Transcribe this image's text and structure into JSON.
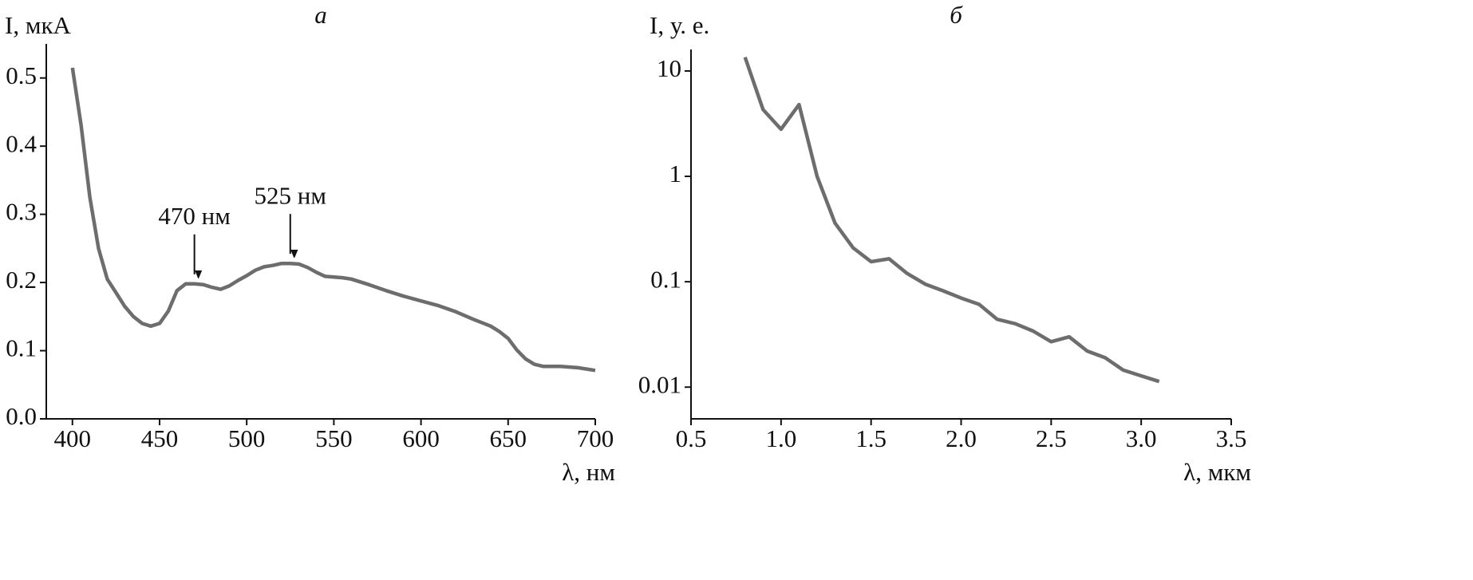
{
  "chart_data": [
    {
      "type": "line",
      "title": "а",
      "x_label": "λ, нм",
      "y_label": "I, мкА",
      "color": "#6d6d6d",
      "log_y": false,
      "xlim": [
        385,
        700
      ],
      "xticks": [
        400,
        450,
        500,
        550,
        600,
        650,
        700
      ],
      "ylim": [
        0,
        0.55
      ],
      "yticks": [
        {
          "value": 0,
          "label": "0.0"
        },
        0.1,
        0.2,
        0.3,
        0.4,
        0.5
      ],
      "x": [
        400,
        405,
        410,
        415,
        420,
        425,
        430,
        435,
        440,
        445,
        450,
        455,
        460,
        465,
        470,
        475,
        480,
        485,
        490,
        495,
        500,
        505,
        510,
        515,
        520,
        525,
        530,
        535,
        540,
        545,
        550,
        555,
        560,
        570,
        580,
        590,
        600,
        610,
        620,
        630,
        640,
        645,
        650,
        655,
        660,
        665,
        670,
        680,
        690,
        700
      ],
      "values": [
        0.515,
        0.43,
        0.325,
        0.25,
        0.205,
        0.185,
        0.165,
        0.15,
        0.14,
        0.136,
        0.14,
        0.158,
        0.188,
        0.198,
        0.198,
        0.197,
        0.193,
        0.19,
        0.195,
        0.203,
        0.21,
        0.218,
        0.223,
        0.225,
        0.228,
        0.228,
        0.227,
        0.222,
        0.215,
        0.209,
        0.208,
        0.207,
        0.205,
        0.197,
        0.188,
        0.18,
        0.173,
        0.166,
        0.157,
        0.146,
        0.136,
        0.128,
        0.118,
        0.101,
        0.088,
        0.08,
        0.077,
        0.077,
        0.075,
        0.071
      ],
      "annotations": [
        {
          "text": "470 нм",
          "x": 470,
          "y": 0.198
        },
        {
          "text": "525 нм",
          "x": 525,
          "y": 0.228
        }
      ]
    },
    {
      "type": "line",
      "title": "б",
      "x_label": "λ, мкм",
      "y_label": "I, у. е.",
      "color": "#6d6d6d",
      "log_y": true,
      "xlim": [
        0.5,
        3.5
      ],
      "xticks": [
        0.5,
        {
          "value": 1,
          "label": "1.0"
        },
        1.5,
        {
          "value": 2,
          "label": "2.0"
        },
        2.5,
        {
          "value": 3,
          "label": "3.0"
        },
        3.5
      ],
      "ylim": [
        0.005,
        16
      ],
      "yticks": [
        0.01,
        0.1,
        1,
        10
      ],
      "x": [
        0.8,
        0.9,
        1.0,
        1.1,
        1.2,
        1.3,
        1.4,
        1.5,
        1.6,
        1.7,
        1.8,
        1.9,
        2.0,
        2.1,
        2.2,
        2.3,
        2.4,
        2.5,
        2.6,
        2.7,
        2.8,
        2.9,
        3.0,
        3.1
      ],
      "values": [
        13.5,
        4.3,
        2.8,
        4.8,
        1.0,
        0.36,
        0.21,
        0.155,
        0.165,
        0.12,
        0.095,
        0.082,
        0.07,
        0.061,
        0.044,
        0.04,
        0.034,
        0.027,
        0.03,
        0.022,
        0.019,
        0.0145,
        0.0128,
        0.0113
      ]
    }
  ]
}
